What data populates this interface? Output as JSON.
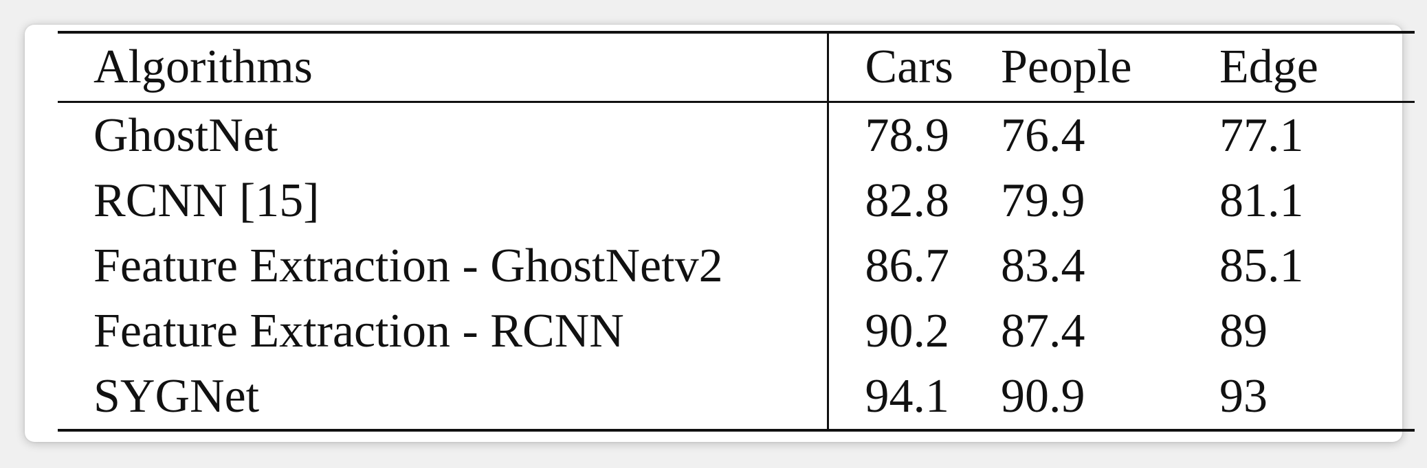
{
  "table": {
    "headers": [
      "Algorithms",
      "Cars",
      "People",
      "Edge"
    ],
    "rows": [
      [
        "GhostNet",
        "78.9",
        "76.4",
        "77.1"
      ],
      [
        "RCNN [15]",
        "82.8",
        "79.9",
        "81.1"
      ],
      [
        "Feature Extraction - GhostNetv2",
        "86.7",
        "83.4",
        "85.1"
      ],
      [
        "Feature Extraction - RCNN",
        "90.2",
        "87.4",
        "89"
      ],
      [
        "SYGNet",
        "94.1",
        "90.9",
        "93"
      ]
    ]
  },
  "colors": {
    "rule": "#111111",
    "text": "#111111",
    "background": "#f0f0f0",
    "card": "#ffffff"
  }
}
